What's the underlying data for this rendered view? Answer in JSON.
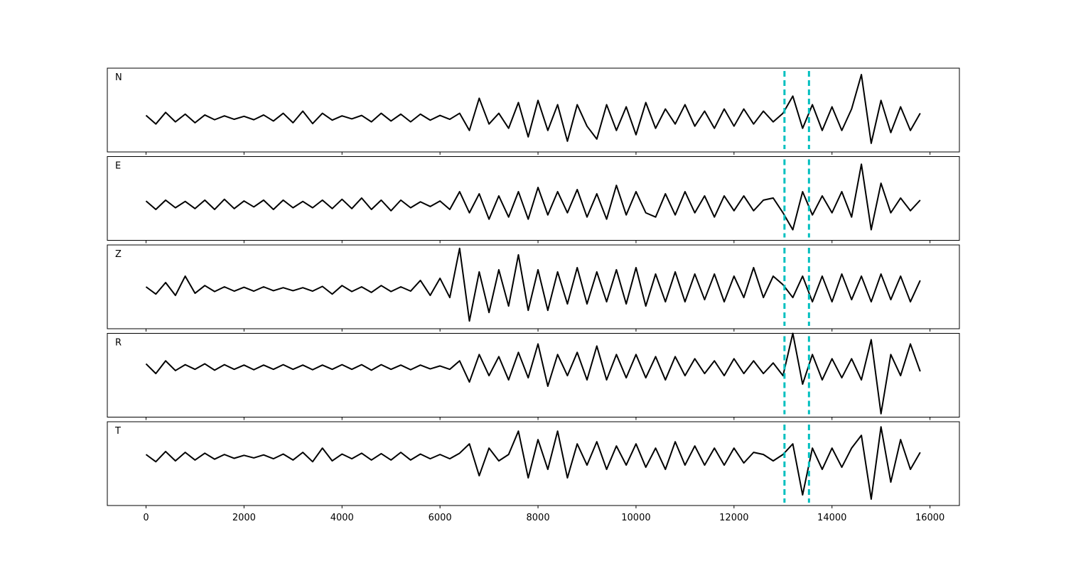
{
  "chart_data": [
    {
      "type": "line",
      "label": "N",
      "color": "#000000",
      "xlim": [
        -790,
        16600
      ],
      "ylim": [
        -0.8,
        1.15
      ],
      "vlines": [
        13030,
        13530
      ],
      "vline_color": "#00bfbf",
      "x": [
        0,
        200,
        400,
        600,
        800,
        1000,
        1200,
        1400,
        1600,
        1800,
        2000,
        2200,
        2400,
        2600,
        2800,
        3000,
        3200,
        3400,
        3600,
        3800,
        4000,
        4200,
        4400,
        4600,
        4800,
        5000,
        5200,
        5400,
        5600,
        5800,
        6000,
        6200,
        6400,
        6600,
        6800,
        7000,
        7200,
        7400,
        7600,
        7800,
        8000,
        8200,
        8400,
        8600,
        8800,
        9000,
        9200,
        9400,
        9600,
        9800,
        10000,
        10200,
        10400,
        10600,
        10800,
        11000,
        11200,
        11400,
        11600,
        11800,
        12000,
        12200,
        12400,
        12600,
        12800,
        13000,
        13200,
        13400,
        13600,
        13800,
        14000,
        14200,
        14400,
        14600,
        14800,
        15000,
        15200,
        15400,
        15600,
        15800
      ],
      "values": [
        0.05,
        -0.15,
        0.12,
        -0.1,
        0.08,
        -0.12,
        0.06,
        -0.05,
        0.04,
        -0.04,
        0.03,
        -0.05,
        0.06,
        -0.08,
        0.1,
        -0.12,
        0.15,
        -0.14,
        0.1,
        -0.06,
        0.04,
        -0.03,
        0.05,
        -0.1,
        0.1,
        -0.08,
        0.08,
        -0.1,
        0.08,
        -0.06,
        0.05,
        -0.04,
        0.1,
        -0.3,
        0.45,
        -0.15,
        0.1,
        -0.25,
        0.35,
        -0.45,
        0.4,
        -0.3,
        0.3,
        -0.55,
        0.3,
        -0.2,
        -0.5,
        0.3,
        -0.3,
        0.25,
        -0.4,
        0.35,
        -0.25,
        0.2,
        -0.15,
        0.3,
        -0.2,
        0.15,
        -0.25,
        0.2,
        -0.2,
        0.2,
        -0.15,
        0.15,
        -0.1,
        0.1,
        0.5,
        -0.25,
        0.3,
        -0.3,
        0.25,
        -0.3,
        0.2,
        1.0,
        -0.6,
        0.4,
        -0.35,
        0.25,
        -0.3,
        0.1
      ]
    },
    {
      "type": "line",
      "label": "E",
      "color": "#000000",
      "xlim": [
        -790,
        16600
      ],
      "ylim": [
        -0.85,
        1.13
      ],
      "vlines": [
        13030,
        13530
      ],
      "vline_color": "#00bfbf",
      "x": [
        0,
        200,
        400,
        600,
        800,
        1000,
        1200,
        1400,
        1600,
        1800,
        2000,
        2200,
        2400,
        2600,
        2800,
        3000,
        3200,
        3400,
        3600,
        3800,
        4000,
        4200,
        4400,
        4600,
        4800,
        5000,
        5200,
        5400,
        5600,
        5800,
        6000,
        6200,
        6400,
        6600,
        6800,
        7000,
        7200,
        7400,
        7600,
        7800,
        8000,
        8200,
        8400,
        8600,
        8800,
        9000,
        9200,
        9400,
        9600,
        9800,
        10000,
        10200,
        10400,
        10600,
        10800,
        11000,
        11200,
        11400,
        11600,
        11800,
        12000,
        12200,
        12400,
        12600,
        12800,
        13000,
        13200,
        13400,
        13600,
        13800,
        14000,
        14200,
        14400,
        14600,
        14800,
        15000,
        15200,
        15400,
        15600,
        15800
      ],
      "values": [
        0.08,
        -0.12,
        0.1,
        -0.08,
        0.07,
        -0.1,
        0.1,
        -0.12,
        0.12,
        -0.1,
        0.08,
        -0.06,
        0.1,
        -0.12,
        0.1,
        -0.08,
        0.07,
        -0.08,
        0.1,
        -0.1,
        0.12,
        -0.1,
        0.15,
        -0.12,
        0.1,
        -0.15,
        0.1,
        -0.08,
        0.06,
        -0.05,
        0.08,
        -0.12,
        0.3,
        -0.2,
        0.25,
        -0.35,
        0.2,
        -0.3,
        0.3,
        -0.35,
        0.4,
        -0.25,
        0.3,
        -0.2,
        0.35,
        -0.3,
        0.25,
        -0.35,
        0.45,
        -0.25,
        0.3,
        -0.2,
        -0.3,
        0.25,
        -0.25,
        0.3,
        -0.2,
        0.2,
        -0.3,
        0.2,
        -0.15,
        0.2,
        -0.15,
        0.1,
        0.15,
        -0.2,
        -0.6,
        0.3,
        -0.25,
        0.2,
        -0.2,
        0.3,
        -0.3,
        0.95,
        -0.6,
        0.5,
        -0.2,
        0.15,
        -0.15,
        0.1
      ]
    },
    {
      "type": "line",
      "label": "Z",
      "color": "#000000",
      "xlim": [
        -790,
        16600
      ],
      "ylim": [
        -0.93,
        1.03
      ],
      "vlines": [
        13030,
        13530
      ],
      "vline_color": "#00bfbf",
      "x": [
        0,
        200,
        400,
        600,
        800,
        1000,
        1200,
        1400,
        1600,
        1800,
        2000,
        2200,
        2400,
        2600,
        2800,
        3000,
        3200,
        3400,
        3600,
        3800,
        4000,
        4200,
        4400,
        4600,
        4800,
        5000,
        5200,
        5400,
        5600,
        5800,
        6000,
        6200,
        6400,
        6600,
        6800,
        7000,
        7200,
        7400,
        7600,
        7800,
        8000,
        8200,
        8400,
        8600,
        8800,
        9000,
        9200,
        9400,
        9600,
        9800,
        10000,
        10200,
        10400,
        10600,
        10800,
        11000,
        11200,
        11400,
        11600,
        11800,
        12000,
        12200,
        12400,
        12600,
        12800,
        13000,
        13200,
        13400,
        13600,
        13800,
        14000,
        14200,
        14400,
        14600,
        14800,
        15000,
        15200,
        15400,
        15600,
        15800
      ],
      "values": [
        0.05,
        -0.12,
        0.15,
        -0.15,
        0.3,
        -0.1,
        0.08,
        -0.06,
        0.05,
        -0.05,
        0.04,
        -0.05,
        0.05,
        -0.04,
        0.03,
        -0.04,
        0.03,
        -0.05,
        0.06,
        -0.12,
        0.08,
        -0.06,
        0.05,
        -0.08,
        0.08,
        -0.06,
        0.05,
        -0.05,
        0.2,
        -0.15,
        0.25,
        -0.2,
        0.95,
        -0.75,
        0.4,
        -0.55,
        0.45,
        -0.4,
        0.8,
        -0.5,
        0.45,
        -0.5,
        0.4,
        -0.35,
        0.5,
        -0.35,
        0.4,
        -0.3,
        0.45,
        -0.35,
        0.5,
        -0.4,
        0.35,
        -0.3,
        0.4,
        -0.3,
        0.35,
        -0.25,
        0.35,
        -0.3,
        0.3,
        -0.2,
        0.5,
        -0.2,
        0.3,
        0.1,
        -0.2,
        0.3,
        -0.3,
        0.3,
        -0.3,
        0.35,
        -0.25,
        0.3,
        -0.3,
        0.35,
        -0.25,
        0.3,
        -0.3,
        0.2
      ]
    },
    {
      "type": "line",
      "label": "R",
      "color": "#000000",
      "xlim": [
        -790,
        16600
      ],
      "ylim": [
        -1.18,
        0.8
      ],
      "vlines": [
        13030,
        13530
      ],
      "vline_color": "#00bfbf",
      "x": [
        0,
        200,
        400,
        600,
        800,
        1000,
        1200,
        1400,
        1600,
        1800,
        2000,
        2200,
        2400,
        2600,
        2800,
        3000,
        3200,
        3400,
        3600,
        3800,
        4000,
        4200,
        4400,
        4600,
        4800,
        5000,
        5200,
        5400,
        5600,
        5800,
        6000,
        6200,
        6400,
        6600,
        6800,
        7000,
        7200,
        7400,
        7600,
        7800,
        8000,
        8200,
        8400,
        8600,
        8800,
        9000,
        9200,
        9400,
        9600,
        9800,
        10000,
        10200,
        10400,
        10600,
        10800,
        11000,
        11200,
        11400,
        11600,
        11800,
        12000,
        12200,
        12400,
        12600,
        12800,
        13000,
        13200,
        13400,
        13600,
        13800,
        14000,
        14200,
        14400,
        14600,
        14800,
        15000,
        15200,
        15400,
        15600,
        15800
      ],
      "values": [
        0.08,
        -0.15,
        0.15,
        -0.08,
        0.06,
        -0.05,
        0.08,
        -0.07,
        0.06,
        -0.05,
        0.05,
        -0.06,
        0.05,
        -0.05,
        0.06,
        -0.05,
        0.05,
        -0.06,
        0.05,
        -0.05,
        0.06,
        -0.05,
        0.06,
        -0.07,
        0.06,
        -0.05,
        0.05,
        -0.06,
        0.05,
        -0.04,
        0.03,
        -0.05,
        0.15,
        -0.35,
        0.3,
        -0.2,
        0.25,
        -0.3,
        0.35,
        -0.25,
        0.55,
        -0.45,
        0.3,
        -0.2,
        0.35,
        -0.3,
        0.5,
        -0.3,
        0.3,
        -0.25,
        0.3,
        -0.25,
        0.25,
        -0.3,
        0.25,
        -0.2,
        0.2,
        -0.15,
        0.15,
        -0.2,
        0.2,
        -0.15,
        0.15,
        -0.15,
        0.1,
        -0.2,
        0.8,
        -0.4,
        0.3,
        -0.3,
        0.2,
        -0.25,
        0.2,
        -0.3,
        0.65,
        -1.1,
        0.3,
        -0.2,
        0.55,
        -0.1
      ]
    },
    {
      "type": "line",
      "label": "T",
      "color": "#000000",
      "xlim": [
        -790,
        16600
      ],
      "ylim": [
        -1.15,
        0.82
      ],
      "vlines": [
        13030,
        13530
      ],
      "vline_color": "#00bfbf",
      "xticks": [
        0,
        2000,
        4000,
        6000,
        8000,
        10000,
        12000,
        14000,
        16000
      ],
      "x": [
        0,
        200,
        400,
        600,
        800,
        1000,
        1200,
        1400,
        1600,
        1800,
        2000,
        2200,
        2400,
        2600,
        2800,
        3000,
        3200,
        3400,
        3600,
        3800,
        4000,
        4200,
        4400,
        4600,
        4800,
        5000,
        5200,
        5400,
        5600,
        5800,
        6000,
        6200,
        6400,
        6600,
        6800,
        7000,
        7200,
        7400,
        7600,
        7800,
        8000,
        8200,
        8400,
        8600,
        8800,
        9000,
        9200,
        9400,
        9600,
        9800,
        10000,
        10200,
        10400,
        10600,
        10800,
        11000,
        11200,
        11400,
        11600,
        11800,
        12000,
        12200,
        12400,
        12600,
        12800,
        13000,
        13200,
        13400,
        13600,
        13800,
        14000,
        14200,
        14400,
        14600,
        14800,
        15000,
        15200,
        15400,
        15600,
        15800
      ],
      "values": [
        0.05,
        -0.12,
        0.12,
        -0.1,
        0.1,
        -0.08,
        0.08,
        -0.06,
        0.05,
        -0.04,
        0.03,
        -0.03,
        0.04,
        -0.05,
        0.06,
        -0.08,
        0.1,
        -0.12,
        0.2,
        -0.1,
        0.06,
        -0.05,
        0.08,
        -0.08,
        0.07,
        -0.08,
        0.1,
        -0.08,
        0.06,
        -0.05,
        0.05,
        -0.05,
        0.08,
        0.3,
        -0.45,
        0.2,
        -0.1,
        0.05,
        0.6,
        -0.5,
        0.4,
        -0.3,
        0.6,
        -0.5,
        0.3,
        -0.2,
        0.35,
        -0.3,
        0.25,
        -0.2,
        0.3,
        -0.25,
        0.2,
        -0.3,
        0.35,
        -0.2,
        0.25,
        -0.2,
        0.2,
        -0.2,
        0.2,
        -0.15,
        0.1,
        0.05,
        -0.1,
        0.05,
        0.3,
        -0.9,
        0.2,
        -0.3,
        0.2,
        -0.25,
        0.2,
        0.5,
        -1.0,
        0.7,
        -0.6,
        0.4,
        -0.3,
        0.1
      ]
    }
  ]
}
